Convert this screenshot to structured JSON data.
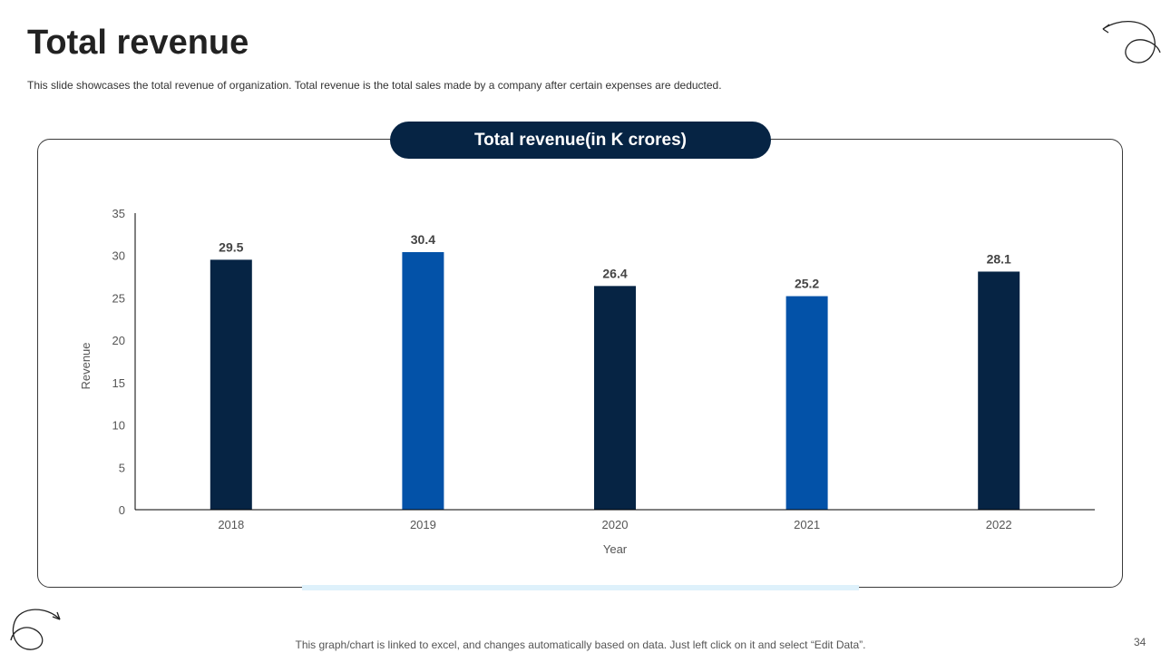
{
  "slide": {
    "title": "Total revenue",
    "subtitle": "This slide showcases the total revenue of organization. Total revenue is the total sales made by a company after certain expenses are deducted.",
    "chart_heading": "Total revenue(in K crores)",
    "footer_note": "This graph/chart is linked to excel, and changes automatically based on data. Just left click on it and select “Edit Data”.",
    "page_number": "34",
    "decorative_icons": [
      "curl-arrow-icon",
      "curl-arrow-icon"
    ]
  },
  "chart_data": {
    "type": "bar",
    "title": "Total revenue(in K crores)",
    "xlabel": "Year",
    "ylabel": "Revenue",
    "categories": [
      "2018",
      "2019",
      "2020",
      "2021",
      "2022"
    ],
    "values": [
      29.5,
      30.4,
      26.4,
      25.2,
      28.1
    ],
    "data_labels": [
      "29.5",
      "30.4",
      "26.4",
      "25.2",
      "28.1"
    ],
    "ylim": [
      0,
      35
    ],
    "yticks": [
      0,
      5,
      10,
      15,
      20,
      25,
      30,
      35
    ],
    "grid": false,
    "legend": "none",
    "bar_colors": [
      "#062444",
      "#0352a8",
      "#062444",
      "#0352a8",
      "#062444"
    ]
  },
  "colors": {
    "dark_navy": "#062444",
    "royal_blue": "#0352a8",
    "accent_light": "#def1fb"
  }
}
